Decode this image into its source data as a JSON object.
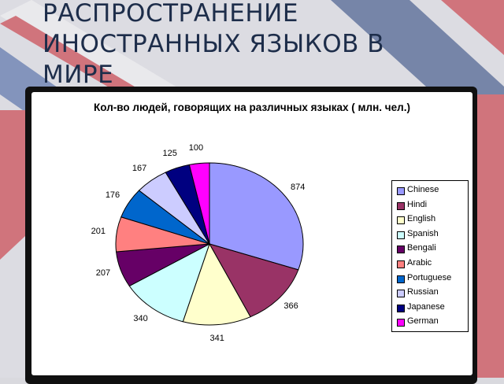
{
  "slide": {
    "title": "РАСПРОСТРАНЕНИЕ ИНОСТРАННЫХ ЯЗЫКОВ В МИРЕ"
  },
  "colors": {
    "flag_red": "#c8202a",
    "flag_blue": "#243f7a",
    "flag_white": "#f2f2f2"
  },
  "chart_data": {
    "type": "pie",
    "title": "Кол-во людей, говорящих на различных языках ( млн. чел.)",
    "categories": [
      "Chinese",
      "Hindi",
      "English",
      "Spanish",
      "Bengali",
      "Arabic",
      "Portuguese",
      "Russian",
      "Japanese",
      "German"
    ],
    "values": [
      874,
      366,
      341,
      340,
      207,
      201,
      176,
      167,
      125,
      100
    ],
    "colors": [
      "#9999ff",
      "#993366",
      "#ffffcc",
      "#ccffff",
      "#660066",
      "#ff8080",
      "#0066cc",
      "#ccccff",
      "#000080",
      "#ff00ff"
    ],
    "legend_position": "right",
    "start_angle_deg": 0,
    "direction": "clockwise"
  }
}
